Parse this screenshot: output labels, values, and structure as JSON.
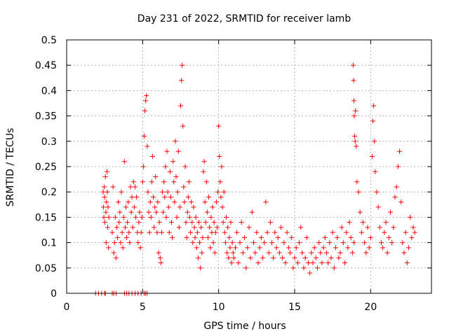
{
  "chart_data": {
    "type": "scatter",
    "title": "Day 231 of 2022, SRMTID for receiver lamb",
    "xlabel": "GPS time / hours",
    "ylabel": "SRMTID / TECUs",
    "xlim": [
      0,
      24
    ],
    "ylim": [
      0,
      0.5
    ],
    "x_ticks": [
      0,
      5,
      10,
      15,
      20
    ],
    "x_tick_labels": [
      "0",
      "5",
      "10",
      "15",
      "20"
    ],
    "y_ticks": [
      0,
      0.05,
      0.1,
      0.15,
      0.2,
      0.25,
      0.3,
      0.35,
      0.4,
      0.45,
      0.5
    ],
    "y_tick_labels": [
      "0",
      "0.05",
      "0.1",
      "0.15",
      "0.2",
      "0.25",
      "0.3",
      "0.35",
      "0.4",
      "0.45",
      "0.5"
    ],
    "grid": true,
    "marker": "+",
    "color": "#ff0000",
    "series": [
      {
        "name": "SRMTID",
        "x": [
          1.9,
          2.1,
          2.3,
          2.5,
          2.55,
          3.0,
          3.1,
          3.25,
          3.8,
          3.95,
          4.1,
          4.3,
          4.5,
          4.7,
          4.9,
          5.1,
          5.2,
          5.3,
          2.4,
          2.42,
          2.45,
          2.47,
          2.5,
          2.52,
          2.55,
          2.58,
          2.6,
          2.62,
          2.65,
          2.68,
          2.7,
          2.72,
          2.75,
          2.78,
          3.0,
          3.05,
          3.1,
          3.15,
          3.2,
          3.25,
          3.3,
          3.35,
          3.4,
          3.45,
          3.5,
          3.55,
          3.6,
          3.65,
          3.7,
          3.75,
          3.8,
          3.85,
          3.9,
          3.95,
          4.0,
          4.05,
          4.1,
          4.15,
          4.2,
          4.25,
          4.3,
          4.35,
          4.4,
          4.45,
          4.5,
          4.55,
          4.6,
          4.65,
          4.7,
          4.75,
          4.8,
          4.85,
          4.9,
          4.95,
          5.0,
          5.05,
          5.1,
          5.15,
          5.2,
          5.25,
          5.3,
          5.35,
          5.4,
          5.45,
          5.5,
          5.55,
          5.6,
          5.65,
          5.7,
          5.75,
          5.8,
          5.85,
          5.9,
          5.95,
          6.0,
          6.05,
          6.1,
          6.15,
          6.2,
          6.25,
          6.3,
          6.35,
          6.4,
          6.45,
          6.5,
          6.55,
          6.6,
          6.65,
          6.7,
          6.75,
          6.8,
          6.85,
          6.9,
          6.95,
          7.0,
          7.05,
          7.1,
          7.15,
          7.2,
          7.25,
          7.3,
          7.35,
          7.4,
          7.45,
          7.5,
          7.55,
          7.6,
          7.65,
          7.7,
          7.75,
          7.8,
          7.85,
          7.9,
          7.95,
          8.0,
          8.05,
          8.1,
          8.15,
          8.2,
          8.25,
          8.3,
          8.35,
          8.4,
          8.45,
          8.5,
          8.55,
          8.6,
          8.65,
          8.7,
          8.75,
          8.8,
          8.85,
          8.9,
          8.95,
          9.0,
          9.05,
          9.1,
          9.15,
          9.2,
          9.25,
          9.3,
          9.35,
          9.4,
          9.45,
          9.5,
          9.55,
          9.6,
          9.65,
          9.7,
          9.75,
          9.8,
          9.85,
          9.9,
          9.95,
          10.0,
          10.05,
          10.1,
          10.15,
          10.2,
          10.25,
          10.3,
          10.35,
          10.4,
          10.45,
          10.5,
          10.55,
          10.6,
          10.65,
          10.7,
          10.75,
          10.8,
          10.85,
          10.9,
          10.95,
          11.0,
          11.1,
          11.2,
          11.3,
          11.4,
          11.5,
          11.6,
          11.7,
          11.8,
          11.9,
          12.0,
          12.1,
          12.2,
          12.3,
          12.4,
          12.5,
          12.6,
          12.7,
          12.8,
          12.9,
          13.0,
          13.1,
          13.2,
          13.3,
          13.4,
          13.5,
          13.6,
          13.7,
          13.8,
          13.9,
          14.0,
          14.1,
          14.2,
          14.3,
          14.4,
          14.5,
          14.6,
          14.7,
          14.8,
          14.9,
          15.0,
          15.1,
          15.2,
          15.3,
          15.4,
          15.5,
          15.6,
          15.7,
          15.8,
          15.9,
          16.0,
          16.1,
          16.2,
          16.3,
          16.4,
          16.5,
          16.6,
          16.7,
          16.8,
          16.9,
          17.0,
          17.1,
          17.2,
          17.3,
          17.4,
          17.5,
          17.6,
          17.7,
          17.8,
          17.9,
          18.0,
          18.1,
          18.2,
          18.3,
          18.4,
          18.5,
          18.6,
          18.7,
          18.8,
          18.9,
          18.85,
          18.88,
          18.9,
          18.92,
          18.95,
          18.98,
          19.0,
          19.05,
          19.1,
          19.2,
          19.3,
          19.4,
          19.5,
          19.6,
          19.7,
          19.8,
          19.9,
          20.0,
          20.1,
          20.15,
          20.2,
          20.25,
          20.3,
          20.4,
          20.5,
          20.6,
          20.7,
          20.8,
          20.9,
          21.0,
          21.1,
          21.2,
          21.3,
          21.4,
          21.5,
          21.6,
          21.7,
          21.8,
          21.9,
          22.0,
          22.1,
          22.2,
          22.3,
          22.4,
          22.5,
          22.6,
          22.7,
          22.8,
          22.9
        ],
        "y": [
          0,
          0,
          0,
          0,
          0,
          0,
          0,
          0,
          0,
          0,
          0,
          0,
          0,
          0,
          0,
          0,
          0,
          0,
          0.2,
          0.17,
          0.15,
          0.21,
          0.19,
          0.14,
          0.23,
          0.16,
          0.1,
          0.18,
          0.24,
          0.2,
          0.13,
          0.17,
          0.09,
          0.15,
          0.12,
          0.21,
          0.08,
          0.1,
          0.15,
          0.07,
          0.13,
          0.11,
          0.18,
          0.14,
          0.16,
          0.1,
          0.2,
          0.12,
          0.09,
          0.15,
          0.26,
          0.13,
          0.17,
          0.11,
          0.14,
          0.18,
          0.12,
          0.1,
          0.21,
          0.16,
          0.19,
          0.13,
          0.22,
          0.17,
          0.21,
          0.15,
          0.19,
          0.12,
          0.1,
          0.14,
          0.16,
          0.09,
          0.12,
          0.15,
          0.22,
          0.25,
          0.31,
          0.36,
          0.38,
          0.39,
          0.29,
          0.2,
          0.16,
          0.12,
          0.18,
          0.15,
          0.22,
          0.27,
          0.19,
          0.13,
          0.17,
          0.23,
          0.16,
          0.12,
          0.18,
          0.08,
          0.14,
          0.07,
          0.06,
          0.12,
          0.2,
          0.16,
          0.22,
          0.19,
          0.25,
          0.15,
          0.28,
          0.2,
          0.17,
          0.12,
          0.24,
          0.19,
          0.14,
          0.11,
          0.26,
          0.22,
          0.18,
          0.3,
          0.23,
          0.15,
          0.2,
          0.28,
          0.13,
          0.17,
          0.37,
          0.42,
          0.45,
          0.33,
          0.21,
          0.18,
          0.25,
          0.14,
          0.11,
          0.16,
          0.19,
          0.22,
          0.15,
          0.12,
          0.18,
          0.14,
          0.1,
          0.17,
          0.13,
          0.11,
          0.15,
          0.09,
          0.12,
          0.07,
          0.14,
          0.1,
          0.05,
          0.13,
          0.08,
          0.11,
          0.24,
          0.26,
          0.18,
          0.14,
          0.22,
          0.16,
          0.11,
          0.19,
          0.13,
          0.09,
          0.15,
          0.12,
          0.17,
          0.1,
          0.14,
          0.08,
          0.12,
          0.18,
          0.13,
          0.2,
          0.33,
          0.27,
          0.22,
          0.19,
          0.25,
          0.17,
          0.14,
          0.2,
          0.12,
          0.1,
          0.15,
          0.08,
          0.13,
          0.07,
          0.11,
          0.09,
          0.14,
          0.06,
          0.1,
          0.08,
          0.07,
          0.09,
          0.12,
          0.06,
          0.1,
          0.14,
          0.08,
          0.11,
          0.05,
          0.09,
          0.13,
          0.07,
          0.16,
          0.1,
          0.08,
          0.12,
          0.06,
          0.09,
          0.11,
          0.07,
          0.1,
          0.18,
          0.12,
          0.08,
          0.14,
          0.1,
          0.07,
          0.12,
          0.09,
          0.11,
          0.08,
          0.13,
          0.07,
          0.1,
          0.06,
          0.12,
          0.09,
          0.08,
          0.11,
          0.05,
          0.07,
          0.09,
          0.06,
          0.1,
          0.13,
          0.08,
          0.05,
          0.07,
          0.11,
          0.06,
          0.04,
          0.08,
          0.06,
          0.09,
          0.07,
          0.05,
          0.1,
          0.08,
          0.06,
          0.09,
          0.11,
          0.08,
          0.06,
          0.1,
          0.07,
          0.12,
          0.05,
          0.09,
          0.11,
          0.07,
          0.08,
          0.13,
          0.1,
          0.06,
          0.12,
          0.09,
          0.14,
          0.11,
          0.08,
          0.1,
          0.45,
          0.42,
          0.38,
          0.35,
          0.31,
          0.3,
          0.36,
          0.29,
          0.22,
          0.2,
          0.16,
          0.12,
          0.14,
          0.1,
          0.08,
          0.13,
          0.09,
          0.11,
          0.27,
          0.34,
          0.37,
          0.3,
          0.24,
          0.2,
          0.17,
          0.13,
          0.1,
          0.09,
          0.12,
          0.14,
          0.08,
          0.11,
          0.16,
          0.1,
          0.13,
          0.19,
          0.21,
          0.25,
          0.28,
          0.18,
          0.1,
          0.08,
          0.12,
          0.06,
          0.09,
          0.15,
          0.11,
          0.13,
          0.12
        ]
      }
    ]
  }
}
